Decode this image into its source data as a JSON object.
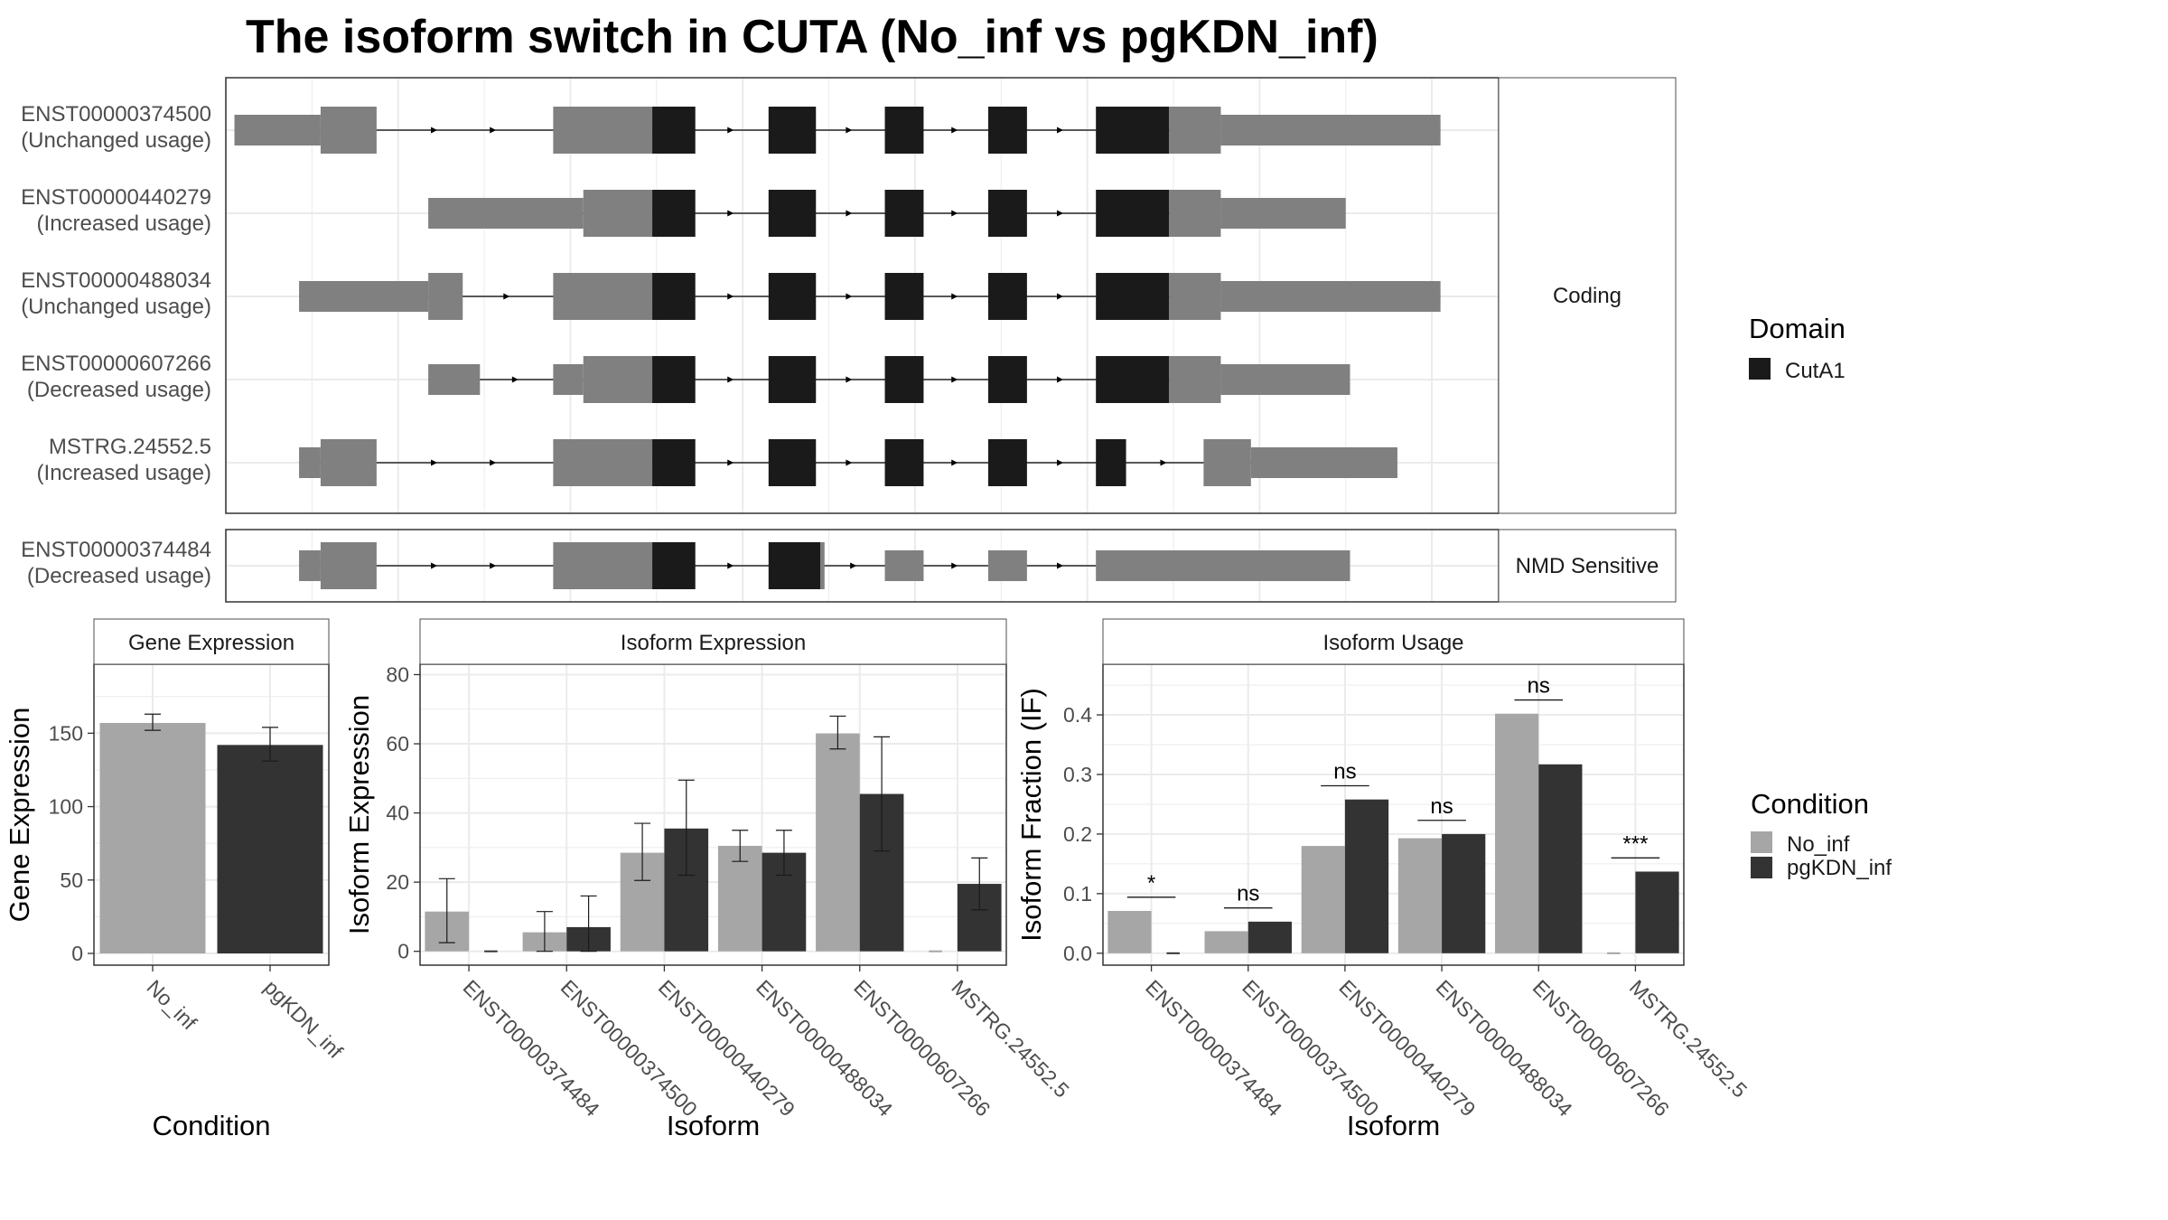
{
  "title": "The isoform switch in CUTA (No_inf vs pgKDN_inf)",
  "colors": {
    "utr": "#808080",
    "domain": "#1a1a1a",
    "no_inf": "#a6a6a6",
    "pgkdn_inf": "#333333",
    "grid_major": "#ebebeb",
    "panel_border": "#333333",
    "strip_border": "#4d4d4d"
  },
  "legends": {
    "domain": {
      "title": "Domain",
      "items": [
        "CutA1"
      ]
    },
    "condition": {
      "title": "Condition",
      "items": [
        "No_inf",
        "pgKDN_inf"
      ]
    }
  },
  "chart_data": [
    {
      "type": "gene_structure",
      "facets": [
        {
          "strip": "Coding",
          "transcripts": [
            {
              "label": "ENST00000374500\n(Unchanged usage)",
              "exons": [
                [
                  0.2,
                  2.2,
                  "utr",
                  "thin"
                ],
                [
                  2.2,
                  3.5,
                  "utr",
                  "thick"
                ],
                [
                  7.6,
                  9.9,
                  "utr",
                  "thick"
                ],
                [
                  9.9,
                  10.9,
                  "domain",
                  "thick"
                ],
                [
                  12.6,
                  13.7,
                  "domain",
                  "thick"
                ],
                [
                  15.3,
                  16.2,
                  "domain",
                  "thick"
                ],
                [
                  17.7,
                  18.6,
                  "domain",
                  "thick"
                ],
                [
                  20.2,
                  21.9,
                  "domain",
                  "thick"
                ],
                [
                  21.9,
                  23.1,
                  "utr",
                  "thick"
                ],
                [
                  23.1,
                  28.2,
                  "utr",
                  "thin"
                ]
              ]
            },
            {
              "label": "ENST00000440279\n(Increased usage)",
              "exons": [
                [
                  4.7,
                  8.3,
                  "utr",
                  "thin"
                ],
                [
                  8.3,
                  9.9,
                  "utr",
                  "thick"
                ],
                [
                  9.9,
                  10.9,
                  "domain",
                  "thick"
                ],
                [
                  12.6,
                  13.7,
                  "domain",
                  "thick"
                ],
                [
                  15.3,
                  16.2,
                  "domain",
                  "thick"
                ],
                [
                  17.7,
                  18.6,
                  "domain",
                  "thick"
                ],
                [
                  20.2,
                  21.9,
                  "domain",
                  "thick"
                ],
                [
                  21.9,
                  23.1,
                  "utr",
                  "thick"
                ],
                [
                  23.1,
                  26.0,
                  "utr",
                  "thin"
                ]
              ]
            },
            {
              "label": "ENST00000488034\n(Unchanged usage)",
              "exons": [
                [
                  1.7,
                  4.7,
                  "utr",
                  "thin"
                ],
                [
                  4.7,
                  5.5,
                  "utr",
                  "thick"
                ],
                [
                  7.6,
                  9.9,
                  "utr",
                  "thick"
                ],
                [
                  9.9,
                  10.9,
                  "domain",
                  "thick"
                ],
                [
                  12.6,
                  13.7,
                  "domain",
                  "thick"
                ],
                [
                  15.3,
                  16.2,
                  "domain",
                  "thick"
                ],
                [
                  17.7,
                  18.6,
                  "domain",
                  "thick"
                ],
                [
                  20.2,
                  21.9,
                  "domain",
                  "thick"
                ],
                [
                  21.9,
                  23.1,
                  "utr",
                  "thick"
                ],
                [
                  23.1,
                  28.2,
                  "utr",
                  "thin"
                ]
              ]
            },
            {
              "label": "ENST00000607266\n(Decreased usage)",
              "exons": [
                [
                  4.7,
                  5.9,
                  "utr",
                  "thin"
                ],
                [
                  7.6,
                  8.3,
                  "utr",
                  "thin"
                ],
                [
                  8.3,
                  9.9,
                  "utr",
                  "thick"
                ],
                [
                  9.9,
                  10.9,
                  "domain",
                  "thick"
                ],
                [
                  12.6,
                  13.7,
                  "domain",
                  "thick"
                ],
                [
                  15.3,
                  16.2,
                  "domain",
                  "thick"
                ],
                [
                  17.7,
                  18.6,
                  "domain",
                  "thick"
                ],
                [
                  20.2,
                  21.9,
                  "domain",
                  "thick"
                ],
                [
                  21.9,
                  23.1,
                  "utr",
                  "thick"
                ],
                [
                  23.1,
                  26.1,
                  "utr",
                  "thin"
                ]
              ]
            },
            {
              "label": "MSTRG.24552.5\n(Increased usage)",
              "exons": [
                [
                  1.7,
                  2.2,
                  "utr",
                  "thin"
                ],
                [
                  2.2,
                  3.5,
                  "utr",
                  "thick"
                ],
                [
                  7.6,
                  9.9,
                  "utr",
                  "thick"
                ],
                [
                  9.9,
                  10.9,
                  "domain",
                  "thick"
                ],
                [
                  12.6,
                  13.7,
                  "domain",
                  "thick"
                ],
                [
                  15.3,
                  16.2,
                  "domain",
                  "thick"
                ],
                [
                  17.7,
                  18.6,
                  "domain",
                  "thick"
                ],
                [
                  20.2,
                  20.9,
                  "domain",
                  "thick"
                ],
                [
                  22.7,
                  23.8,
                  "utr",
                  "thick"
                ],
                [
                  23.8,
                  27.2,
                  "utr",
                  "thin"
                ]
              ]
            }
          ]
        },
        {
          "strip": "NMD Sensitive",
          "transcripts": [
            {
              "label": "ENST00000374484\n(Decreased usage)",
              "exons": [
                [
                  1.7,
                  2.2,
                  "utr",
                  "thin"
                ],
                [
                  2.2,
                  3.5,
                  "utr",
                  "thick"
                ],
                [
                  7.6,
                  9.9,
                  "utr",
                  "thick"
                ],
                [
                  9.9,
                  10.9,
                  "domain",
                  "thick"
                ],
                [
                  12.6,
                  13.8,
                  "domain",
                  "thick"
                ],
                [
                  13.8,
                  13.9,
                  "utr",
                  "thick"
                ],
                [
                  15.3,
                  16.2,
                  "utr",
                  "thin"
                ],
                [
                  17.7,
                  18.6,
                  "utr",
                  "thin"
                ],
                [
                  20.2,
                  26.1,
                  "utr",
                  "thin"
                ]
              ]
            }
          ]
        }
      ]
    },
    {
      "type": "bar",
      "title": "Gene Expression",
      "xlabel": "Condition",
      "ylabel": "Gene Expression",
      "ylim": [
        -8,
        197
      ],
      "yticks": [
        0,
        50,
        100,
        150
      ],
      "categories": [
        "No_inf",
        "pgKDN_inf"
      ],
      "values": [
        157,
        142
      ],
      "errors": [
        [
          152,
          163
        ],
        [
          131,
          154
        ]
      ]
    },
    {
      "type": "bar",
      "title": "Isoform Expression",
      "xlabel": "Isoform",
      "ylabel": "Isoform Expression",
      "ylim": [
        -4,
        83
      ],
      "yticks": [
        0,
        20,
        40,
        60,
        80
      ],
      "categories": [
        "ENST00000374484",
        "ENST00000374500",
        "ENST00000440279",
        "ENST00000488034",
        "ENST00000607266",
        "MSTRG.24552.5"
      ],
      "series": [
        {
          "name": "No_inf",
          "values": [
            11.5,
            5.5,
            28.5,
            30.5,
            63.0,
            0.0
          ],
          "errors": [
            [
              2.5,
              21.0
            ],
            [
              0.0,
              11.5
            ],
            [
              20.5,
              37.0
            ],
            [
              26.0,
              35.0
            ],
            [
              58.5,
              68.0
            ],
            [
              0.0,
              0.0
            ]
          ]
        },
        {
          "name": "pgKDN_inf",
          "values": [
            0.0,
            7.0,
            35.5,
            28.5,
            45.5,
            19.5
          ],
          "errors": [
            [
              0.0,
              0.0
            ],
            [
              0.0,
              16.0
            ],
            [
              22.0,
              49.5
            ],
            [
              22.0,
              35.0
            ],
            [
              29.0,
              62.0
            ],
            [
              12.0,
              27.0
            ]
          ]
        }
      ]
    },
    {
      "type": "bar",
      "title": "Isoform Usage",
      "xlabel": "Isoform",
      "ylabel": "Isoform Fraction (IF)",
      "ylim": [
        -0.02,
        0.485
      ],
      "yticks": [
        0.0,
        0.1,
        0.2,
        0.3,
        0.4
      ],
      "ytick_labels": [
        "0.0",
        "0.1",
        "0.2",
        "0.3",
        "0.4"
      ],
      "categories": [
        "ENST00000374484",
        "ENST00000374500",
        "ENST00000440279",
        "ENST00000488034",
        "ENST00000607266",
        "MSTRG.24552.5"
      ],
      "series": [
        {
          "name": "No_inf",
          "values": [
            0.071,
            0.037,
            0.18,
            0.193,
            0.402,
            0.0
          ]
        },
        {
          "name": "pgKDN_inf",
          "values": [
            0.0,
            0.053,
            0.258,
            0.2,
            0.317,
            0.137
          ]
        }
      ],
      "significance": [
        "*",
        "ns",
        "ns",
        "ns",
        "ns",
        "***"
      ],
      "significance_y": [
        0.094,
        0.076,
        0.281,
        0.223,
        0.425,
        0.16
      ]
    }
  ]
}
